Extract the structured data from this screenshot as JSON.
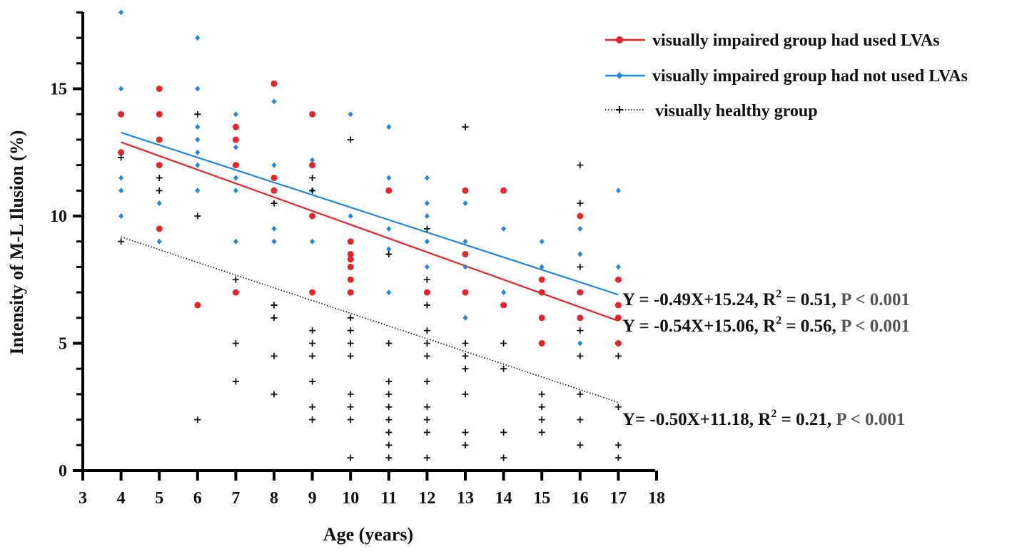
{
  "chart_data": {
    "type": "scatter",
    "xlabel": "Age (years)",
    "ylabel": "Intensity of M-L Ilusion (%)",
    "xlim": [
      3,
      18
    ],
    "ylim": [
      0,
      18
    ],
    "x_ticks": [
      "3",
      "4",
      "5",
      "6",
      "7",
      "8",
      "9",
      "10",
      "11",
      "12",
      "13",
      "14",
      "15",
      "16",
      "17",
      "18"
    ],
    "y_ticks": [
      "0",
      "5",
      "10",
      "15"
    ],
    "series": [
      {
        "name": "visually impaired group had used LVAs",
        "color": "#e8242a",
        "marker": "circle",
        "points": [
          [
            4,
            14
          ],
          [
            4,
            12.5
          ],
          [
            5,
            15
          ],
          [
            5,
            14
          ],
          [
            5,
            13
          ],
          [
            5,
            12
          ],
          [
            5,
            9.5
          ],
          [
            6,
            6.5
          ],
          [
            7,
            13.5
          ],
          [
            7,
            13
          ],
          [
            7,
            12
          ],
          [
            7,
            7
          ],
          [
            8,
            15.2
          ],
          [
            8,
            11.5
          ],
          [
            8,
            11
          ],
          [
            9,
            14
          ],
          [
            9,
            12
          ],
          [
            9,
            10
          ],
          [
            9,
            7
          ],
          [
            10,
            9
          ],
          [
            10,
            8.5
          ],
          [
            10,
            8.3
          ],
          [
            10,
            8
          ],
          [
            10,
            7.5
          ],
          [
            10,
            7
          ],
          [
            11,
            11
          ],
          [
            12,
            7
          ],
          [
            13,
            11
          ],
          [
            13,
            8.5
          ],
          [
            13,
            7
          ],
          [
            14,
            11
          ],
          [
            14,
            6.5
          ],
          [
            15,
            7.5
          ],
          [
            15,
            7
          ],
          [
            15,
            6
          ],
          [
            15,
            5
          ],
          [
            16,
            10
          ],
          [
            16,
            7
          ],
          [
            16,
            6
          ],
          [
            17,
            7.5
          ],
          [
            17,
            6.5
          ],
          [
            17,
            6
          ],
          [
            17,
            5
          ]
        ],
        "fit": {
          "slope": -0.54,
          "intercept": 15.06,
          "x_range": [
            4,
            17
          ]
        }
      },
      {
        "name": "visually impaired group had not used LVAs",
        "color": "#1f87dd",
        "marker": "diamond",
        "points": [
          [
            4,
            18
          ],
          [
            4,
            15
          ],
          [
            4,
            11.5
          ],
          [
            4,
            11
          ],
          [
            4,
            10
          ],
          [
            5,
            10.5
          ],
          [
            5,
            9
          ],
          [
            6,
            17
          ],
          [
            6,
            15
          ],
          [
            6,
            13.5
          ],
          [
            6,
            13
          ],
          [
            6,
            12.5
          ],
          [
            6,
            12
          ],
          [
            6,
            11
          ],
          [
            7,
            14
          ],
          [
            7,
            12.7
          ],
          [
            7,
            11.5
          ],
          [
            7,
            11
          ],
          [
            7,
            9
          ],
          [
            8,
            14.5
          ],
          [
            8,
            12
          ],
          [
            8,
            9.5
          ],
          [
            8,
            9
          ],
          [
            9,
            12.2
          ],
          [
            9,
            11
          ],
          [
            9,
            9
          ],
          [
            10,
            14
          ],
          [
            10,
            10
          ],
          [
            11,
            13.5
          ],
          [
            11,
            11.5
          ],
          [
            11,
            9.5
          ],
          [
            11,
            8.7
          ],
          [
            11,
            7
          ],
          [
            12,
            11.5
          ],
          [
            12,
            10.5
          ],
          [
            12,
            10
          ],
          [
            12,
            9
          ],
          [
            12,
            8
          ],
          [
            13,
            10.5
          ],
          [
            13,
            9
          ],
          [
            13,
            8
          ],
          [
            13,
            6
          ],
          [
            14,
            9.5
          ],
          [
            14,
            7
          ],
          [
            15,
            9
          ],
          [
            15,
            8
          ],
          [
            16,
            9.5
          ],
          [
            16,
            8.5
          ],
          [
            16,
            5
          ],
          [
            17,
            11
          ],
          [
            17,
            8
          ]
        ],
        "fit": {
          "slope": -0.49,
          "intercept": 15.24,
          "x_range": [
            4,
            17
          ]
        }
      },
      {
        "name": "visually healthy group",
        "color": "#111111",
        "marker": "plus",
        "points": [
          [
            4,
            12.3
          ],
          [
            4,
            9
          ],
          [
            5,
            11.5
          ],
          [
            5,
            11
          ],
          [
            6,
            14
          ],
          [
            6,
            10
          ],
          [
            6,
            2
          ],
          [
            7,
            7.5
          ],
          [
            7,
            5
          ],
          [
            7,
            3.5
          ],
          [
            8,
            10.5
          ],
          [
            8,
            6.5
          ],
          [
            8,
            6
          ],
          [
            8,
            4.5
          ],
          [
            8,
            3
          ],
          [
            9,
            11.5
          ],
          [
            9,
            11
          ],
          [
            9,
            5.5
          ],
          [
            9,
            5
          ],
          [
            9,
            4.5
          ],
          [
            9,
            3.5
          ],
          [
            9,
            2.5
          ],
          [
            9,
            2
          ],
          [
            10,
            13
          ],
          [
            10,
            6
          ],
          [
            10,
            5.5
          ],
          [
            10,
            5
          ],
          [
            10,
            4.5
          ],
          [
            10,
            3
          ],
          [
            10,
            2.5
          ],
          [
            10,
            2
          ],
          [
            10,
            0.5
          ],
          [
            11,
            8.5
          ],
          [
            11,
            5
          ],
          [
            11,
            3.5
          ],
          [
            11,
            3
          ],
          [
            11,
            2.5
          ],
          [
            11,
            2
          ],
          [
            11,
            1.5
          ],
          [
            11,
            1
          ],
          [
            11,
            0.5
          ],
          [
            12,
            9.5
          ],
          [
            12,
            7.5
          ],
          [
            12,
            6.5
          ],
          [
            12,
            5.5
          ],
          [
            12,
            5
          ],
          [
            12,
            4.5
          ],
          [
            12,
            3.5
          ],
          [
            12,
            2.5
          ],
          [
            12,
            2
          ],
          [
            12,
            1.5
          ],
          [
            12,
            0.5
          ],
          [
            13,
            13.5
          ],
          [
            13,
            5
          ],
          [
            13,
            4.5
          ],
          [
            13,
            4
          ],
          [
            13,
            3
          ],
          [
            13,
            1.5
          ],
          [
            13,
            1
          ],
          [
            14,
            5
          ],
          [
            14,
            4
          ],
          [
            14,
            1.5
          ],
          [
            14,
            0.5
          ],
          [
            15,
            3
          ],
          [
            15,
            2.5
          ],
          [
            15,
            2
          ],
          [
            15,
            1.5
          ],
          [
            16,
            12
          ],
          [
            16,
            10.5
          ],
          [
            16,
            8
          ],
          [
            16,
            5.5
          ],
          [
            16,
            4.5
          ],
          [
            16,
            3
          ],
          [
            16,
            2
          ],
          [
            16,
            1
          ],
          [
            17,
            4.5
          ],
          [
            17,
            2.5
          ],
          [
            17,
            1
          ],
          [
            17,
            0.5
          ]
        ],
        "fit": {
          "slope": -0.5,
          "intercept": 11.18,
          "x_range": [
            4,
            17
          ],
          "dotted": true
        }
      }
    ],
    "annotations": [
      {
        "main": "Y = -0.49X+15.24, R",
        "sup": "2",
        "rest": " = 0.51, ",
        "p": "P < 0.001"
      },
      {
        "main": "Y = -0.54X+15.06, R",
        "sup": "2",
        "rest": " = 0.56, ",
        "p": "P < 0.001"
      },
      {
        "main": "Y= -0.50X+11.18, R",
        "sup": "2",
        "rest": " = 0.21, ",
        "p": "P < 0.001"
      }
    ],
    "legend_position": "top-right"
  }
}
